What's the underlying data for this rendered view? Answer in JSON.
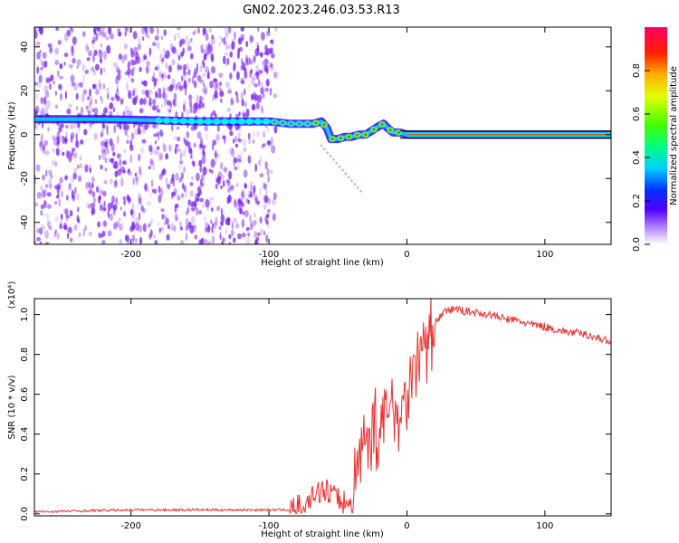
{
  "title": "GN02.2023.246.03.53.R13",
  "colors": {
    "accent_line": "#e8312f",
    "highlight_line": "#ff2040",
    "scatter": "#7b22ee"
  },
  "chart_data": [
    {
      "type": "heatmap",
      "xlabel": "Height of straight line (km)",
      "ylabel": "Frequency (Hz)",
      "xlim": [
        -270,
        148
      ],
      "ylim": [
        -50,
        49
      ],
      "x_ticks": [
        "-200",
        "-100",
        "0",
        "100"
      ],
      "y_ticks": [
        "-40",
        "-20",
        "0",
        "20",
        "40"
      ],
      "scatter_region_x": [
        -270,
        -95
      ],
      "ridge": {
        "x": [
          -270,
          -220,
          -180,
          -150,
          -120,
          -100,
          -85,
          -75,
          -68,
          -62,
          -58,
          -55,
          -50,
          -45,
          -40,
          -35,
          -30,
          -25,
          -20,
          -17,
          -14,
          -10,
          -5,
          0,
          5,
          148
        ],
        "y": [
          7,
          7,
          6.5,
          6,
          6,
          6,
          5,
          5,
          5,
          6,
          3,
          -2,
          -2,
          -1,
          -1,
          0,
          0,
          2,
          4,
          5,
          3,
          1,
          1,
          0,
          0,
          0
        ]
      },
      "colorbar": {
        "label": "Normalized spectral amplitude",
        "ticks": [
          "0.0",
          "0.2",
          "0.4",
          "0.6",
          "0.8"
        ]
      }
    },
    {
      "type": "line",
      "xlabel": "Height of straight line (km)",
      "ylabel": "SNR (10 * v/v)",
      "ylabel_scale": "(x10⁴)",
      "xlim": [
        -270,
        148
      ],
      "ylim": [
        -0.01,
        1.08
      ],
      "x_ticks": [
        "-200",
        "-100",
        "0",
        "100"
      ],
      "y_ticks": [
        "0.0",
        "0.2",
        "0.4",
        "0.6",
        "0.8",
        "1.0"
      ],
      "series": [
        {
          "x": [
            -270,
            -200,
            -100,
            -85,
            -80,
            -75,
            -70,
            -65,
            -60,
            -56,
            -52,
            -48,
            -44,
            -40,
            -38,
            -35,
            -30,
            -25,
            -20,
            -15,
            -10,
            -5,
            0,
            5,
            10,
            15,
            20,
            25,
            30,
            35,
            40,
            50,
            60,
            70,
            80,
            90,
            100,
            110,
            120,
            130,
            140,
            148
          ],
          "y": [
            0.01,
            0.02,
            0.02,
            0.02,
            0.04,
            0.06,
            0.08,
            0.1,
            0.12,
            0.1,
            0.08,
            0.06,
            0.05,
            0.05,
            0.15,
            0.3,
            0.35,
            0.45,
            0.4,
            0.5,
            0.55,
            0.5,
            0.6,
            0.75,
            0.82,
            0.88,
            0.95,
            1.0,
            1.02,
            1.03,
            1.02,
            1.01,
            1.0,
            0.98,
            0.97,
            0.95,
            0.94,
            0.92,
            0.91,
            0.9,
            0.88,
            0.86
          ]
        }
      ]
    }
  ]
}
